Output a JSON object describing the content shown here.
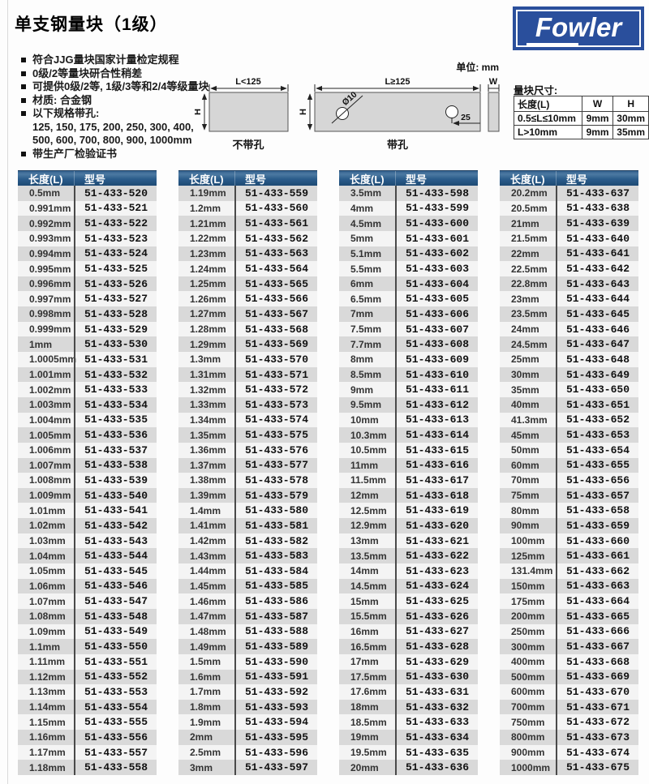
{
  "page": {
    "title": "单支钢量块（1级）"
  },
  "logo": {
    "text": "Fowler"
  },
  "bullets": [
    {
      "marker": true,
      "text": "符合JJG量块国家计量检定规程"
    },
    {
      "marker": true,
      "text": "0级/2等量块研合性稍差"
    },
    {
      "marker": true,
      "text": "可提供0级/2等, 1级/3等和2/4等级量块"
    },
    {
      "marker": true,
      "text": "材质: 合金钢"
    },
    {
      "marker": true,
      "text": "以下规格带孔:"
    },
    {
      "marker": false,
      "text": "125, 150, 175, 200, 250, 300, 400,"
    },
    {
      "marker": false,
      "text": "500, 600, 700, 800, 900, 1000mm"
    },
    {
      "marker": true,
      "text": "带生产厂检验证书"
    }
  ],
  "diagram": {
    "unit_label": "单位: mm",
    "no_hole": {
      "length_label": "L<125",
      "height_label": "H",
      "caption": "不带孔"
    },
    "with_hole": {
      "length_label": "L≥125",
      "height_label": "H",
      "hole_diameter_label": "Ø10",
      "hole_offset_label": "25",
      "caption": "带孔"
    },
    "width_label": "W"
  },
  "size_table": {
    "title": "量块尺寸:",
    "headers": [
      "长度(L)",
      "W",
      "H"
    ],
    "rows": [
      [
        "0.5≤L≤10mm",
        "9mm",
        "30mm"
      ],
      [
        "L>10mm",
        "9mm",
        "35mm"
      ]
    ]
  },
  "tables": {
    "headers": [
      "长度(L)",
      "型号"
    ],
    "columns": [
      {
        "rows": [
          [
            "0.5mm",
            "51-433-520"
          ],
          [
            "0.991mm",
            "51-433-521"
          ],
          [
            "0.992mm",
            "51-433-522"
          ],
          [
            "0.993mm",
            "51-433-523"
          ],
          [
            "0.994mm",
            "51-433-524"
          ],
          [
            "0.995mm",
            "51-433-525"
          ],
          [
            "0.996mm",
            "51-433-526"
          ],
          [
            "0.997mm",
            "51-433-527"
          ],
          [
            "0.998mm",
            "51-433-528"
          ],
          [
            "0.999mm",
            "51-433-529"
          ],
          [
            "1mm",
            "51-433-530"
          ],
          [
            "1.0005mm",
            "51-433-531"
          ],
          [
            "1.001mm",
            "51-433-532"
          ],
          [
            "1.002mm",
            "51-433-533"
          ],
          [
            "1.003mm",
            "51-433-534"
          ],
          [
            "1.004mm",
            "51-433-535"
          ],
          [
            "1.005mm",
            "51-433-536"
          ],
          [
            "1.006mm",
            "51-433-537"
          ],
          [
            "1.007mm",
            "51-433-538"
          ],
          [
            "1.008mm",
            "51-433-539"
          ],
          [
            "1.009mm",
            "51-433-540"
          ],
          [
            "1.01mm",
            "51-433-541"
          ],
          [
            "1.02mm",
            "51-433-542"
          ],
          [
            "1.03mm",
            "51-433-543"
          ],
          [
            "1.04mm",
            "51-433-544"
          ],
          [
            "1.05mm",
            "51-433-545"
          ],
          [
            "1.06mm",
            "51-433-546"
          ],
          [
            "1.07mm",
            "51-433-547"
          ],
          [
            "1.08mm",
            "51-433-548"
          ],
          [
            "1.09mm",
            "51-433-549"
          ],
          [
            "1.1mm",
            "51-433-550"
          ],
          [
            "1.11mm",
            "51-433-551"
          ],
          [
            "1.12mm",
            "51-433-552"
          ],
          [
            "1.13mm",
            "51-433-553"
          ],
          [
            "1.14mm",
            "51-433-554"
          ],
          [
            "1.15mm",
            "51-433-555"
          ],
          [
            "1.16mm",
            "51-433-556"
          ],
          [
            "1.17mm",
            "51-433-557"
          ],
          [
            "1.18mm",
            "51-433-558"
          ]
        ]
      },
      {
        "rows": [
          [
            "1.19mm",
            "51-433-559"
          ],
          [
            "1.2mm",
            "51-433-560"
          ],
          [
            "1.21mm",
            "51-433-561"
          ],
          [
            "1.22mm",
            "51-433-562"
          ],
          [
            "1.23mm",
            "51-433-563"
          ],
          [
            "1.24mm",
            "51-433-564"
          ],
          [
            "1.25mm",
            "51-433-565"
          ],
          [
            "1.26mm",
            "51-433-566"
          ],
          [
            "1.27mm",
            "51-433-567"
          ],
          [
            "1.28mm",
            "51-433-568"
          ],
          [
            "1.29mm",
            "51-433-569"
          ],
          [
            "1.3mm",
            "51-433-570"
          ],
          [
            "1.31mm",
            "51-433-571"
          ],
          [
            "1.32mm",
            "51-433-572"
          ],
          [
            "1.33mm",
            "51-433-573"
          ],
          [
            "1.34mm",
            "51-433-574"
          ],
          [
            "1.35mm",
            "51-433-575"
          ],
          [
            "1.36mm",
            "51-433-576"
          ],
          [
            "1.37mm",
            "51-433-577"
          ],
          [
            "1.38mm",
            "51-433-578"
          ],
          [
            "1.39mm",
            "51-433-579"
          ],
          [
            "1.4mm",
            "51-433-580"
          ],
          [
            "1.41mm",
            "51-433-581"
          ],
          [
            "1.42mm",
            "51-433-582"
          ],
          [
            "1.43mm",
            "51-433-583"
          ],
          [
            "1.44mm",
            "51-433-584"
          ],
          [
            "1.45mm",
            "51-433-585"
          ],
          [
            "1.46mm",
            "51-433-586"
          ],
          [
            "1.47mm",
            "51-433-587"
          ],
          [
            "1.48mm",
            "51-433-588"
          ],
          [
            "1.49mm",
            "51-433-589"
          ],
          [
            "1.5mm",
            "51-433-590"
          ],
          [
            "1.6mm",
            "51-433-591"
          ],
          [
            "1.7mm",
            "51-433-592"
          ],
          [
            "1.8mm",
            "51-433-593"
          ],
          [
            "1.9mm",
            "51-433-594"
          ],
          [
            "2mm",
            "51-433-595"
          ],
          [
            "2.5mm",
            "51-433-596"
          ],
          [
            "3mm",
            "51-433-597"
          ]
        ]
      },
      {
        "rows": [
          [
            "3.5mm",
            "51-433-598"
          ],
          [
            "4mm",
            "51-433-599"
          ],
          [
            "4.5mm",
            "51-433-600"
          ],
          [
            "5mm",
            "51-433-601"
          ],
          [
            "5.1mm",
            "51-433-602"
          ],
          [
            "5.5mm",
            "51-433-603"
          ],
          [
            "6mm",
            "51-433-604"
          ],
          [
            "6.5mm",
            "51-433-605"
          ],
          [
            "7mm",
            "51-433-606"
          ],
          [
            "7.5mm",
            "51-433-607"
          ],
          [
            "7.7mm",
            "51-433-608"
          ],
          [
            "8mm",
            "51-433-609"
          ],
          [
            "8.5mm",
            "51-433-610"
          ],
          [
            "9mm",
            "51-433-611"
          ],
          [
            "9.5mm",
            "51-433-612"
          ],
          [
            "10mm",
            "51-433-613"
          ],
          [
            "10.3mm",
            "51-433-614"
          ],
          [
            "10.5mm",
            "51-433-615"
          ],
          [
            "11mm",
            "51-433-616"
          ],
          [
            "11.5mm",
            "51-433-617"
          ],
          [
            "12mm",
            "51-433-618"
          ],
          [
            "12.5mm",
            "51-433-619"
          ],
          [
            "12.9mm",
            "51-433-620"
          ],
          [
            "13mm",
            "51-433-621"
          ],
          [
            "13.5mm",
            "51-433-622"
          ],
          [
            "14mm",
            "51-433-623"
          ],
          [
            "14.5mm",
            "51-433-624"
          ],
          [
            "15mm",
            "51-433-625"
          ],
          [
            "15.5mm",
            "51-433-626"
          ],
          [
            "16mm",
            "51-433-627"
          ],
          [
            "16.5mm",
            "51-433-628"
          ],
          [
            "17mm",
            "51-433-629"
          ],
          [
            "17.5mm",
            "51-433-630"
          ],
          [
            "17.6mm",
            "51-433-631"
          ],
          [
            "18mm",
            "51-433-632"
          ],
          [
            "18.5mm",
            "51-433-633"
          ],
          [
            "19mm",
            "51-433-634"
          ],
          [
            "19.5mm",
            "51-433-635"
          ],
          [
            "20mm",
            "51-433-636"
          ]
        ]
      },
      {
        "rows": [
          [
            "20.2mm",
            "51-433-637"
          ],
          [
            "20.5mm",
            "51-433-638"
          ],
          [
            "21mm",
            "51-433-639"
          ],
          [
            "21.5mm",
            "51-433-640"
          ],
          [
            "22mm",
            "51-433-641"
          ],
          [
            "22.5mm",
            "51-433-642"
          ],
          [
            "22.8mm",
            "51-433-643"
          ],
          [
            "23mm",
            "51-433-644"
          ],
          [
            "23.5mm",
            "51-433-645"
          ],
          [
            "24mm",
            "51-433-646"
          ],
          [
            "24.5mm",
            "51-433-647"
          ],
          [
            "25mm",
            "51-433-648"
          ],
          [
            "30mm",
            "51-433-649"
          ],
          [
            "35mm",
            "51-433-650"
          ],
          [
            "40mm",
            "51-433-651"
          ],
          [
            "41.3mm",
            "51-433-652"
          ],
          [
            "45mm",
            "51-433-653"
          ],
          [
            "50mm",
            "51-433-654"
          ],
          [
            "60mm",
            "51-433-655"
          ],
          [
            "70mm",
            "51-433-656"
          ],
          [
            "75mm",
            "51-433-657"
          ],
          [
            "80mm",
            "51-433-658"
          ],
          [
            "90mm",
            "51-433-659"
          ],
          [
            "100mm",
            "51-433-660"
          ],
          [
            "125mm",
            "51-433-661"
          ],
          [
            "131.4mm",
            "51-433-662"
          ],
          [
            "150mm",
            "51-433-663"
          ],
          [
            "175mm",
            "51-433-664"
          ],
          [
            "200mm",
            "51-433-665"
          ],
          [
            "250mm",
            "51-433-666"
          ],
          [
            "300mm",
            "51-433-667"
          ],
          [
            "400mm",
            "51-433-668"
          ],
          [
            "500mm",
            "51-433-669"
          ],
          [
            "600mm",
            "51-433-670"
          ],
          [
            "700mm",
            "51-433-671"
          ],
          [
            "750mm",
            "51-433-672"
          ],
          [
            "800mm",
            "51-433-673"
          ],
          [
            "900mm",
            "51-433-674"
          ],
          [
            "1000mm",
            "51-433-675"
          ]
        ]
      }
    ]
  },
  "colors": {
    "header_top": "#35628f",
    "header_mid": "#4c7aa2",
    "header_low": "#2b5c8b",
    "header_bottom": "#1d4a74",
    "row_dark": "#d9d9d9",
    "row_light": "#f4f4f4",
    "logo_blue": "#2a4f9c",
    "divider": "#4a4a4a",
    "diagram_fill": "#d6d6d6"
  }
}
